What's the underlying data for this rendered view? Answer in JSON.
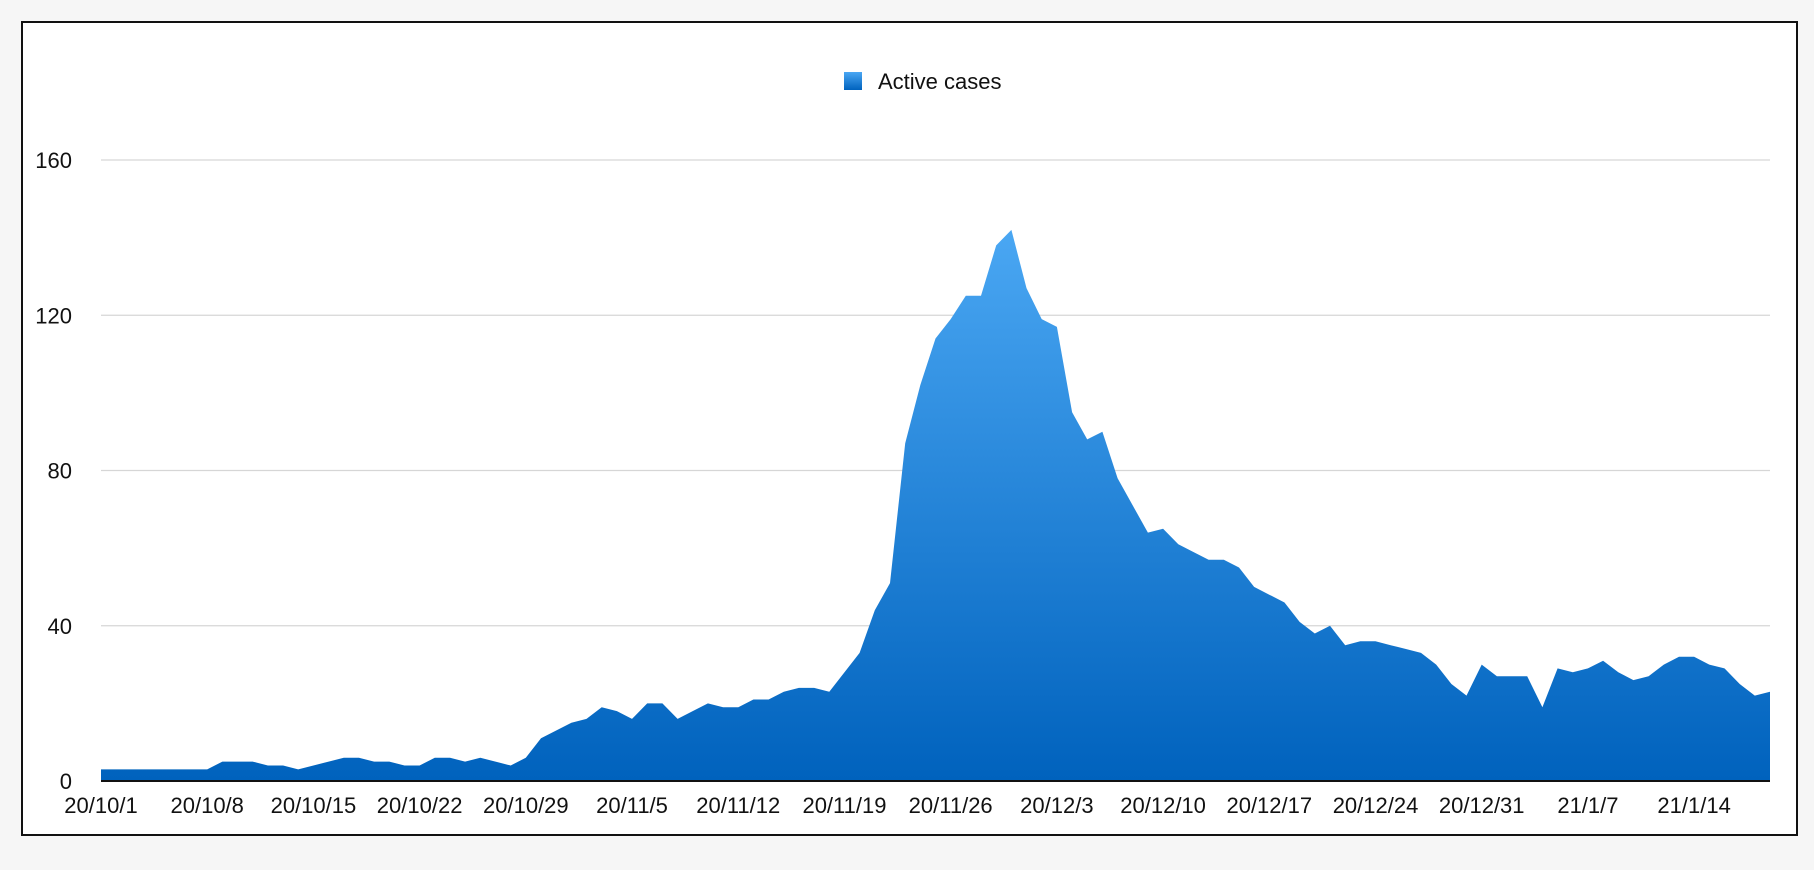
{
  "chart_data": {
    "type": "area",
    "title": "",
    "xlabel": "",
    "ylabel": "",
    "legend": {
      "position": "top-center",
      "entries": [
        "Active cases"
      ]
    },
    "series": [
      {
        "name": "Active cases",
        "values": [
          3,
          3,
          3,
          3,
          3,
          3,
          3,
          3,
          5,
          5,
          5,
          4,
          4,
          3,
          4,
          5,
          6,
          6,
          5,
          5,
          4,
          4,
          6,
          6,
          5,
          6,
          5,
          4,
          6,
          11,
          13,
          15,
          16,
          19,
          18,
          16,
          20,
          20,
          16,
          18,
          20,
          19,
          19,
          21,
          21,
          23,
          24,
          24,
          23,
          28,
          33,
          44,
          51,
          87,
          102,
          114,
          119,
          125,
          125,
          138,
          142,
          127,
          119,
          117,
          95,
          88,
          90,
          78,
          71,
          64,
          65,
          61,
          59,
          57,
          57,
          55,
          50,
          48,
          46,
          41,
          38,
          40,
          35,
          36,
          36,
          35,
          34,
          33,
          30,
          25,
          22,
          30,
          27,
          27,
          27,
          19,
          29,
          28,
          29,
          31,
          28,
          26,
          27,
          30,
          32,
          32,
          30,
          29,
          25,
          22,
          23
        ]
      }
    ],
    "x_tick_labels": [
      "20/10/1",
      "20/10/8",
      "20/10/15",
      "20/10/22",
      "20/10/29",
      "20/11/5",
      "20/11/12",
      "20/11/19",
      "20/11/26",
      "20/12/3",
      "20/12/10",
      "20/12/17",
      "20/12/24",
      "20/12/31",
      "21/1/7",
      "21/1/14"
    ],
    "x_tick_every": 7,
    "y_ticks": [
      0,
      40,
      80,
      120,
      160
    ],
    "y_tick_labels": [
      "0",
      "40",
      "80",
      "120",
      "160"
    ],
    "ylim": [
      0,
      160
    ],
    "grid": true,
    "colors": {
      "fill_top": "#4aa7f3",
      "fill_bottom": "#0062bd",
      "grid": "#d6d6d6"
    }
  }
}
